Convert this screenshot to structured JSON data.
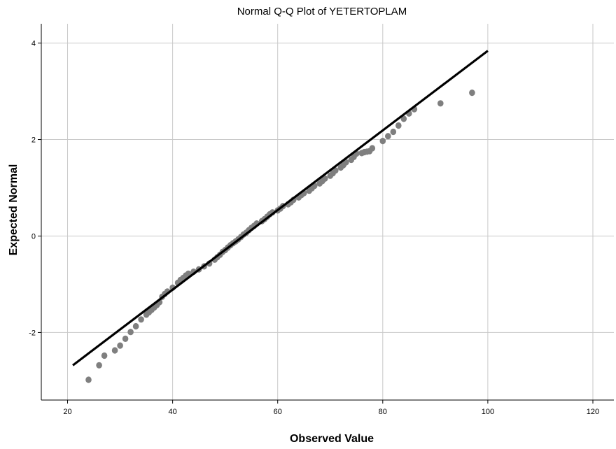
{
  "chart_data": {
    "type": "scatter",
    "title": "Normal Q-Q Plot of YETERTOPLAM",
    "xlabel": "Observed Value",
    "ylabel": "Expected Normal",
    "xlim": [
      15,
      124
    ],
    "ylim": [
      -3.4,
      4.4
    ],
    "xticks": [
      20,
      40,
      60,
      80,
      100,
      120
    ],
    "yticks": [
      -2,
      0,
      2,
      4
    ],
    "grid": true,
    "legend": "none",
    "point_color": "#7f7f7f",
    "line_color": "#000000",
    "reference_line": {
      "x": [
        21,
        100
      ],
      "y": [
        -2.68,
        3.84
      ]
    },
    "points": [
      [
        24,
        -2.98
      ],
      [
        26,
        -2.68
      ],
      [
        27,
        -2.48
      ],
      [
        29,
        -2.37
      ],
      [
        30,
        -2.27
      ],
      [
        31,
        -2.13
      ],
      [
        32,
        -1.99
      ],
      [
        33,
        -1.87
      ],
      [
        34,
        -1.73
      ],
      [
        35,
        -1.63
      ],
      [
        35.5,
        -1.58
      ],
      [
        36,
        -1.53
      ],
      [
        36.5,
        -1.48
      ],
      [
        37,
        -1.43
      ],
      [
        37.5,
        -1.37
      ],
      [
        38,
        -1.26
      ],
      [
        38.5,
        -1.2
      ],
      [
        39,
        -1.15
      ],
      [
        40,
        -1.07
      ],
      [
        41,
        -0.97
      ],
      [
        41.5,
        -0.91
      ],
      [
        42,
        -0.87
      ],
      [
        42.5,
        -0.82
      ],
      [
        43,
        -0.78
      ],
      [
        44,
        -0.74
      ],
      [
        45,
        -0.69
      ],
      [
        46,
        -0.63
      ],
      [
        47,
        -0.57
      ],
      [
        48,
        -0.49
      ],
      [
        48.5,
        -0.44
      ],
      [
        49,
        -0.39
      ],
      [
        49.5,
        -0.33
      ],
      [
        50,
        -0.29
      ],
      [
        50.5,
        -0.24
      ],
      [
        51,
        -0.19
      ],
      [
        51.5,
        -0.15
      ],
      [
        52,
        -0.11
      ],
      [
        52.5,
        -0.07
      ],
      [
        53,
        -0.02
      ],
      [
        53.5,
        0.03
      ],
      [
        54,
        0.07
      ],
      [
        54.5,
        0.12
      ],
      [
        55,
        0.17
      ],
      [
        55.5,
        0.21
      ],
      [
        56,
        0.26
      ],
      [
        57,
        0.31
      ],
      [
        57.5,
        0.35
      ],
      [
        58,
        0.4
      ],
      [
        58.5,
        0.45
      ],
      [
        59,
        0.49
      ],
      [
        60,
        0.53
      ],
      [
        60.5,
        0.57
      ],
      [
        61,
        0.62
      ],
      [
        62,
        0.66
      ],
      [
        62.5,
        0.7
      ],
      [
        63,
        0.75
      ],
      [
        64,
        0.8
      ],
      [
        64.5,
        0.85
      ],
      [
        65,
        0.89
      ],
      [
        66,
        0.94
      ],
      [
        66.5,
        0.99
      ],
      [
        67,
        1.04
      ],
      [
        68,
        1.09
      ],
      [
        68.5,
        1.14
      ],
      [
        69,
        1.19
      ],
      [
        70,
        1.25
      ],
      [
        70.5,
        1.3
      ],
      [
        71,
        1.36
      ],
      [
        72,
        1.42
      ],
      [
        72.5,
        1.47
      ],
      [
        73,
        1.53
      ],
      [
        74,
        1.58
      ],
      [
        74.5,
        1.64
      ],
      [
        75,
        1.71
      ],
      [
        76,
        1.72
      ],
      [
        76.5,
        1.74
      ],
      [
        77,
        1.75
      ],
      [
        77.5,
        1.76
      ],
      [
        78,
        1.82
      ],
      [
        80,
        1.97
      ],
      [
        81,
        2.07
      ],
      [
        82,
        2.16
      ],
      [
        83,
        2.29
      ],
      [
        84,
        2.43
      ],
      [
        85,
        2.54
      ],
      [
        86,
        2.63
      ],
      [
        91,
        2.75
      ],
      [
        97,
        2.97
      ]
    ]
  }
}
